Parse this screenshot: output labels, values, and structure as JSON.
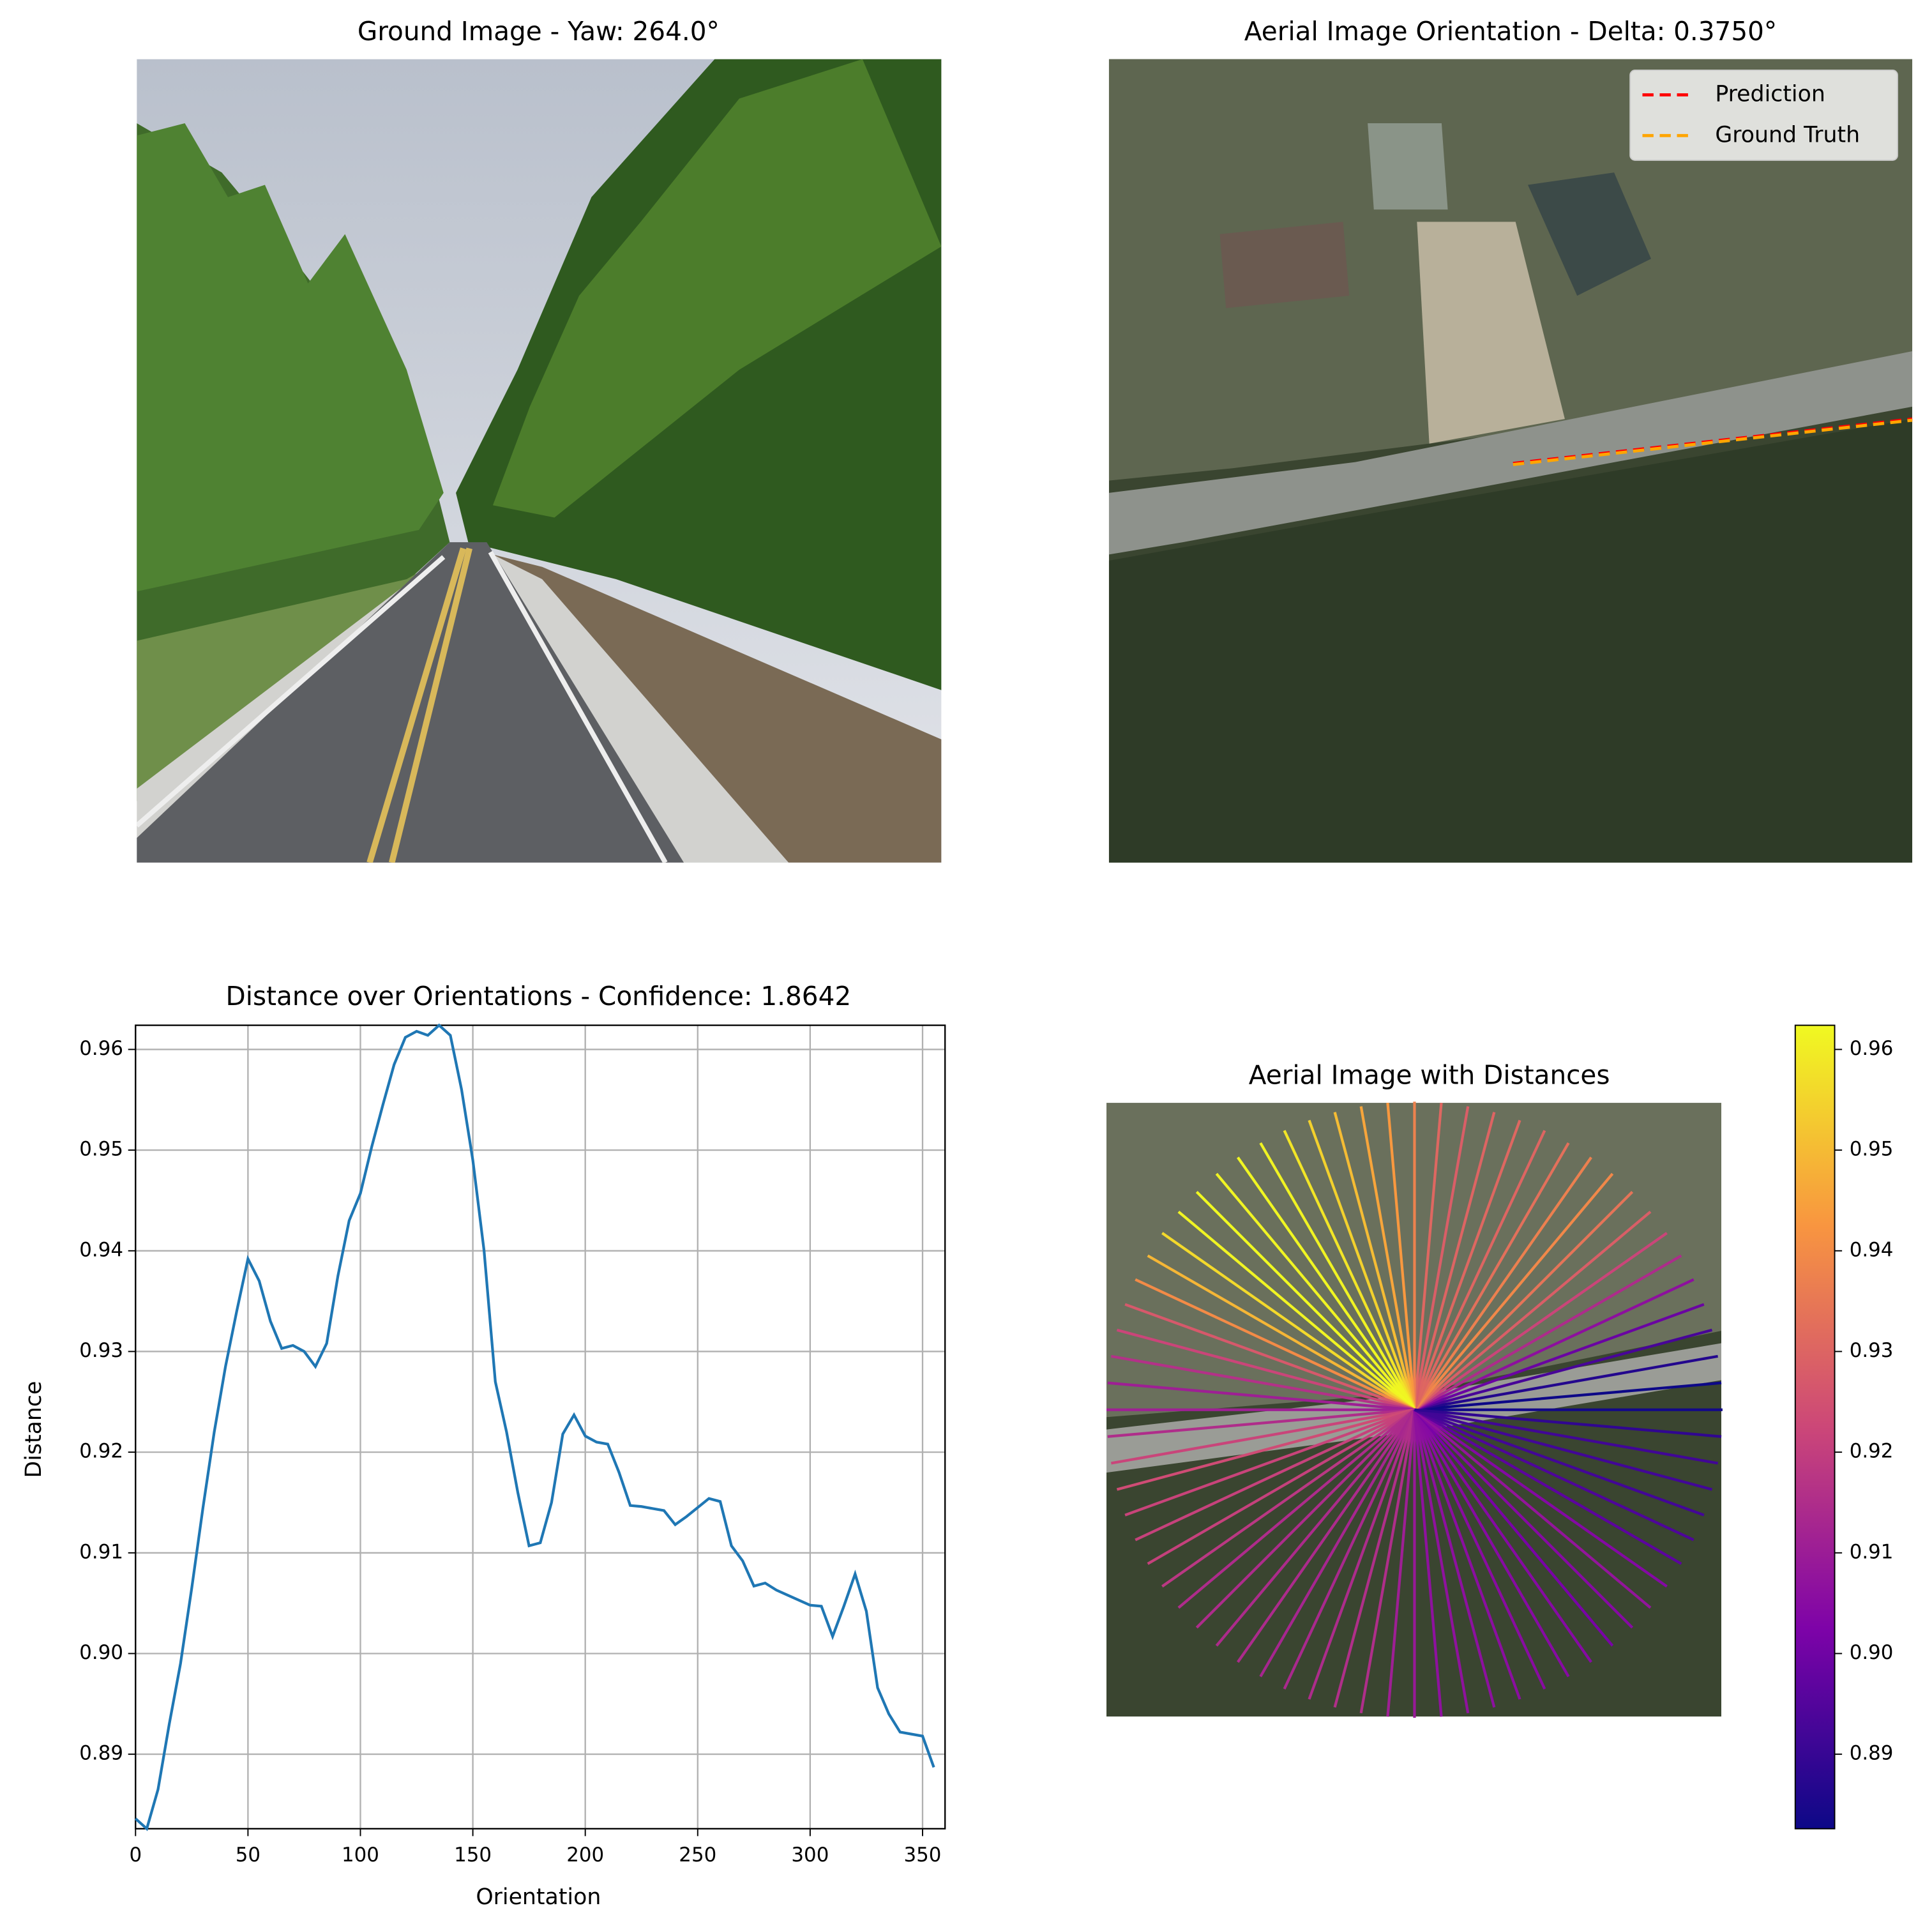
{
  "chart_data": [
    {
      "type": "image",
      "title": "Ground Image - Yaw: 264.0°"
    },
    {
      "type": "image",
      "title": "Aerial Image Orientation - Delta: 0.3750°",
      "series": [
        {
          "name": "Prediction",
          "color": "#ff0000"
        },
        {
          "name": "Ground Truth",
          "color": "#ffa500"
        }
      ],
      "legend": "upper right"
    },
    {
      "type": "line",
      "title": "Distance over Orientations - Confidence: 1.8642",
      "x_label": "Orientation",
      "y_label": "Distance",
      "color": "#1f77b4",
      "x": [
        0,
        5,
        10,
        15,
        20,
        25,
        30,
        35,
        40,
        45,
        50,
        55,
        60,
        65,
        70,
        75,
        80,
        85,
        90,
        95,
        100,
        105,
        110,
        115,
        120,
        125,
        130,
        135,
        140,
        145,
        150,
        155,
        160,
        165,
        170,
        175,
        180,
        185,
        190,
        195,
        200,
        205,
        210,
        215,
        220,
        225,
        230,
        235,
        240,
        245,
        250,
        255,
        260,
        265,
        270,
        275,
        280,
        285,
        290,
        295,
        300,
        305,
        310,
        315,
        320,
        325,
        330,
        335,
        340,
        345,
        350,
        355
      ],
      "values": [
        0.8836,
        0.8826,
        0.8865,
        0.893,
        0.899,
        0.9065,
        0.9145,
        0.922,
        0.9285,
        0.934,
        0.9392,
        0.937,
        0.933,
        0.9303,
        0.9306,
        0.93,
        0.9285,
        0.9308,
        0.9375,
        0.943,
        0.9457,
        0.9503,
        0.9545,
        0.9585,
        0.9612,
        0.9618,
        0.9614,
        0.9624,
        0.9614,
        0.956,
        0.949,
        0.94,
        0.927,
        0.922,
        0.916,
        0.9107,
        0.911,
        0.915,
        0.9218,
        0.9237,
        0.9216,
        0.921,
        0.9208,
        0.918,
        0.9147,
        0.9146,
        0.9144,
        0.9142,
        0.9128,
        0.9136,
        0.9145,
        0.9154,
        0.9151,
        0.9107,
        0.9092,
        0.9067,
        0.907,
        0.9063,
        0.9058,
        0.9053,
        0.9048,
        0.9047,
        0.9017,
        0.9047,
        0.9079,
        0.9042,
        0.8966,
        0.894,
        0.8922,
        0.892,
        0.8918,
        0.8887
      ],
      "xlim": [
        0,
        360
      ],
      "ylim": [
        0.8826,
        0.9624
      ],
      "xticks": [
        0,
        50,
        100,
        150,
        200,
        250,
        300,
        350
      ],
      "yticks": [
        0.89,
        {
          "value": 0.9,
          "label": "0.90"
        },
        0.91,
        0.92,
        0.93,
        0.94,
        0.95,
        0.96
      ],
      "grid": true
    },
    {
      "type": "radial",
      "title": "Aerial Image with Distances",
      "colormap": "plasma",
      "clim": [
        0.8826,
        0.9624
      ],
      "cticks": [
        0.89,
        {
          "value": 0.9,
          "label": "0.90"
        },
        0.91,
        0.92,
        0.93,
        0.94,
        0.95,
        0.96
      ]
    }
  ]
}
